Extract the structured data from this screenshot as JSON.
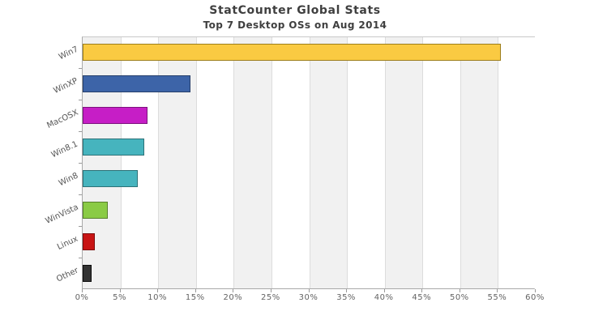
{
  "title": "StatCounter Global Stats",
  "subtitle": "Top 7 Desktop OSs on Aug 2014",
  "chart_data": {
    "type": "bar",
    "orientation": "horizontal",
    "title": "StatCounter Global Stats",
    "subtitle": "Top 7 Desktop OSs on Aug 2014",
    "xlabel": "",
    "ylabel": "",
    "categories": [
      "Win7",
      "WinXP",
      "MacOSX",
      "Win8.1",
      "Win8",
      "WinVista",
      "Linux",
      "Other"
    ],
    "values": [
      55.4,
      14.3,
      8.6,
      8.2,
      7.3,
      3.3,
      1.6,
      1.2
    ],
    "unit": "%",
    "xlim": [
      0,
      60
    ],
    "x_tick_step": 5,
    "x_ticks": [
      "0%",
      "5%",
      "10%",
      "15%",
      "20%",
      "25%",
      "30%",
      "35%",
      "40%",
      "45%",
      "50%",
      "55%",
      "60%"
    ],
    "grid": true,
    "legend": "none",
    "bar_colors": [
      "#FACA42",
      "#3D64A8",
      "#C61EC6",
      "#46B4BE",
      "#46B4BE",
      "#8ACB45",
      "#C81414",
      "#333333"
    ],
    "bar_border_colors": [
      "#9C7E1C",
      "#263F6B",
      "#7C137D",
      "#2C7177",
      "#2C7177",
      "#56802B",
      "#7D0C0C",
      "#0D0D0D"
    ]
  },
  "colors": {
    "band_gray": "#f1f1f1",
    "band_white": "#ffffff",
    "gridline": "#dcdcdc",
    "axis": "#a9a9a9",
    "title_text": "#3f3f3f",
    "tick_text": "#636363",
    "category_text": "#555555"
  }
}
